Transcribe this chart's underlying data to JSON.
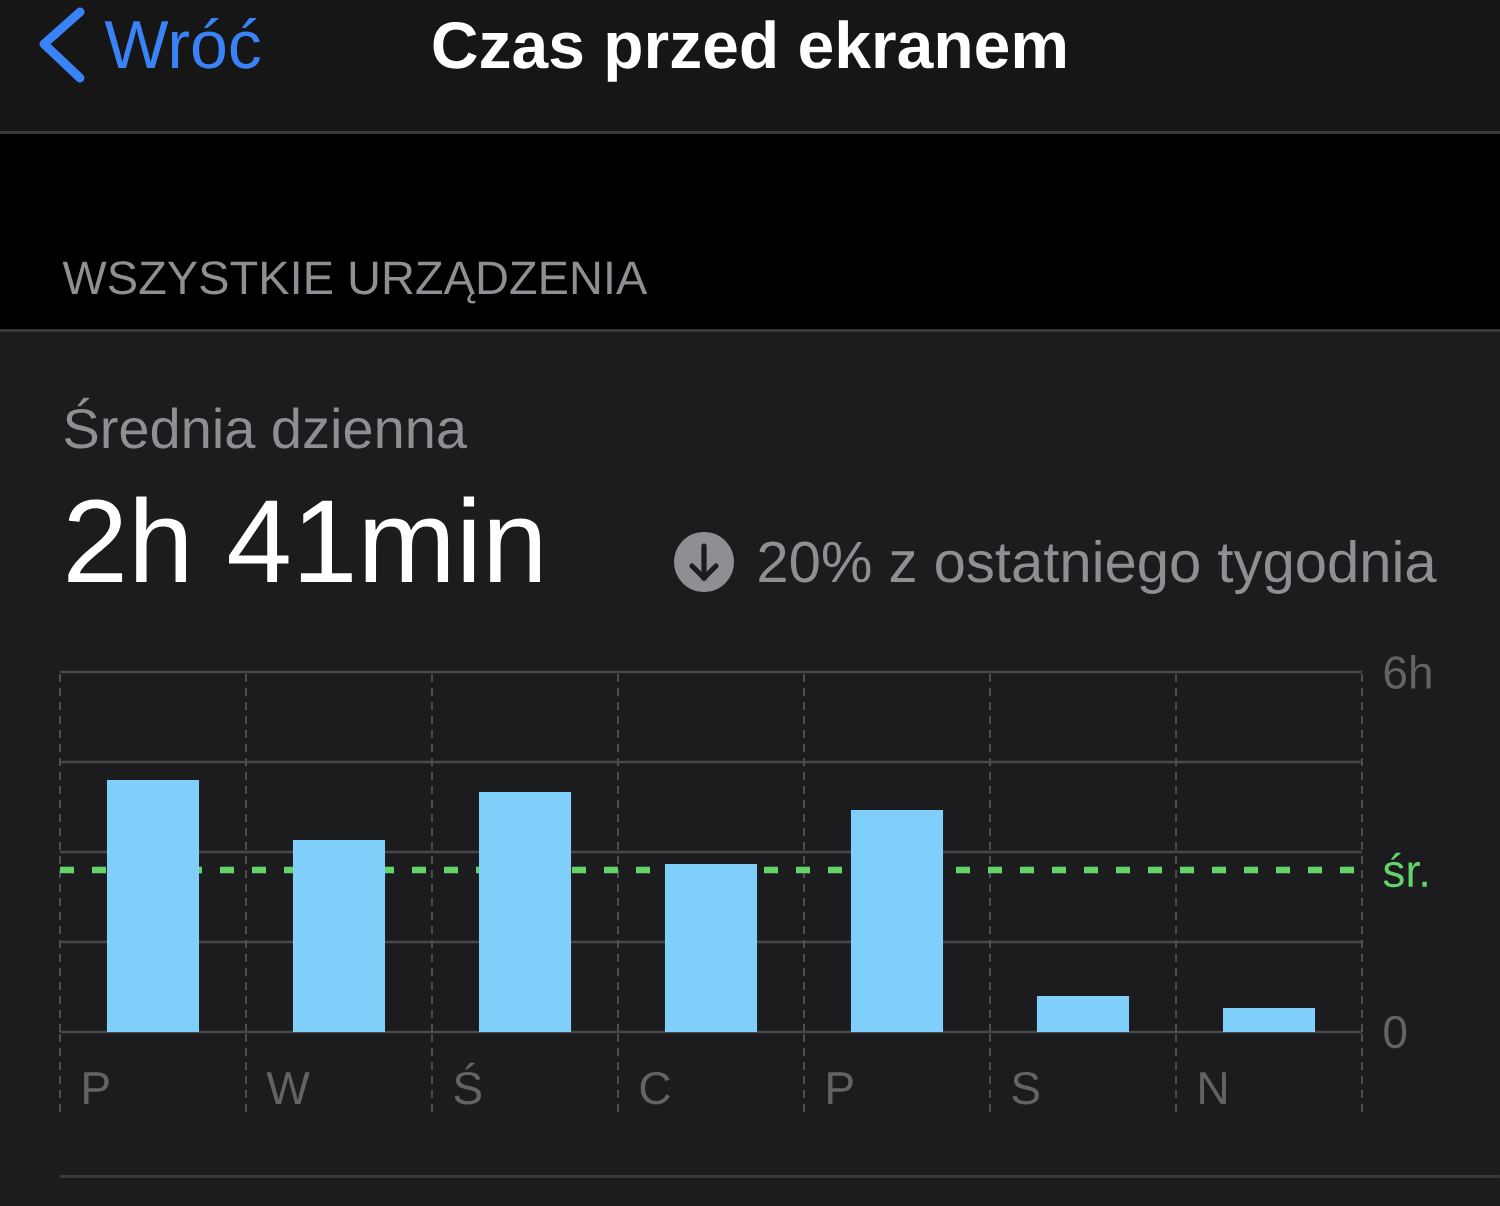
{
  "chart_data": {
    "type": "bar",
    "title": "Czas przed ekranem",
    "subtitle": "WSZYSTKIE URZĄDZENIA",
    "annotations": [
      "Wróć",
      "Średnia dzienna",
      "2h 41min",
      "20% z ostatniego tygodnia"
    ],
    "categories": [
      "P",
      "W",
      "Ś",
      "C",
      "P",
      "S",
      "N"
    ],
    "values": [
      4.2,
      3.2,
      4.0,
      2.8,
      3.7,
      0.6,
      0.4
    ],
    "color": "#7fcffa",
    "ylim": [
      0,
      6
    ],
    "yticks": [
      0,
      {
        "value": 1.5,
        "label": null
      },
      {
        "value": 3,
        "label": null
      },
      {
        "value": 4.5,
        "label": null
      },
      {
        "value": 6,
        "label": "6h"
      }
    ],
    "grid": true,
    "ref_lines": [
      {
        "axis": "y",
        "value": 2.7,
        "label": "śr.",
        "color": "#63d36b",
        "line_style": "dashed"
      }
    ]
  }
}
